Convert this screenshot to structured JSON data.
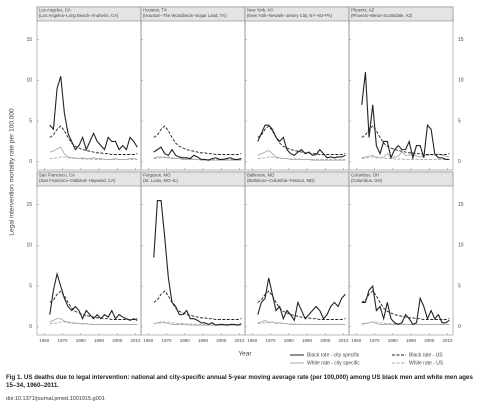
{
  "chart_data": {
    "type": "line",
    "ylabel": "Legal intervention mortality rate per 100,000",
    "xlabel": "Year",
    "x": [
      1963,
      1965,
      1967,
      1969,
      1971,
      1973,
      1975,
      1977,
      1979,
      1981,
      1983,
      1985,
      1987,
      1989,
      1991,
      1993,
      1995,
      1997,
      1999,
      2001,
      2003,
      2005,
      2007,
      2009,
      2011
    ],
    "xlim": [
      1956,
      2013
    ],
    "xticks": [
      1960,
      1970,
      1980,
      1990,
      2000,
      2010
    ],
    "ylim": [
      -1,
      16.3
    ],
    "yticks": [
      0,
      5,
      10,
      15
    ],
    "series": [
      {
        "name": "Black rate - city specific",
        "color": "#222222",
        "dash": false
      },
      {
        "name": "Black rate - US",
        "color": "#222222",
        "dash": true
      },
      {
        "name": "White rate - city specific",
        "color": "#aaaaaa",
        "dash": false
      },
      {
        "name": "White rate - US",
        "color": "#aaaaaa",
        "dash": true
      }
    ],
    "panels": [
      {
        "title": "Los Angeles, CA",
        "subtitle": "(Los Angeles–Long Beach–Anaheim, CA)",
        "values": [
          [
            4.5,
            4.0,
            9.0,
            10.5,
            6.0,
            3.5,
            2.5,
            1.5,
            2.0,
            3.0,
            1.5,
            2.5,
            3.5,
            2.5,
            2.0,
            1.5,
            3.0,
            2.5,
            2.5,
            1.5,
            2.0,
            1.5,
            3.0,
            2.5,
            1.8
          ],
          [
            3.0,
            3.3,
            4.0,
            4.4,
            3.8,
            3.0,
            2.3,
            1.9,
            1.7,
            1.5,
            1.4,
            1.3,
            1.2,
            1.1,
            1.1,
            1.0,
            1.0,
            0.9,
            0.9,
            0.9,
            0.9,
            0.9,
            0.9,
            0.9,
            1.0
          ],
          [
            1.2,
            1.3,
            1.6,
            1.8,
            1.0,
            0.6,
            0.5,
            0.5,
            0.4,
            0.5,
            0.4,
            0.4,
            0.5,
            0.4,
            0.4,
            0.3,
            0.3,
            0.3,
            0.4,
            0.3,
            0.3,
            0.3,
            0.4,
            0.4,
            0.3
          ],
          [
            0.4,
            0.45,
            0.5,
            0.6,
            0.6,
            0.5,
            0.45,
            0.4,
            0.4,
            0.35,
            0.35,
            0.35,
            0.3,
            0.3,
            0.3,
            0.3,
            0.3,
            0.3,
            0.3,
            0.3,
            0.3,
            0.3,
            0.3,
            0.3,
            0.3
          ]
        ]
      },
      {
        "title": "Houston, TX",
        "subtitle": "(Houston–The Woodlands–Sugar Land, TX)",
        "values": [
          [
            1.2,
            1.5,
            1.8,
            1.0,
            0.8,
            1.5,
            0.8,
            0.6,
            0.5,
            0.5,
            0.4,
            0.8,
            0.6,
            0.3,
            0.3,
            0.2,
            0.4,
            0.5,
            0.3,
            0.3,
            0.4,
            0.5,
            0.3,
            0.3,
            0.4
          ],
          [
            3.0,
            3.3,
            4.0,
            4.4,
            3.8,
            3.0,
            2.3,
            1.9,
            1.7,
            1.5,
            1.4,
            1.3,
            1.2,
            1.1,
            1.1,
            1.0,
            1.0,
            0.9,
            0.9,
            0.9,
            0.9,
            0.9,
            0.9,
            0.9,
            1.0
          ],
          [
            0.5,
            0.6,
            0.6,
            0.5,
            0.5,
            0.4,
            0.4,
            0.4,
            0.3,
            0.3,
            0.3,
            0.3,
            0.3,
            0.2,
            0.2,
            0.2,
            0.2,
            0.2,
            0.2,
            0.2,
            0.2,
            0.2,
            0.2,
            0.2,
            0.2
          ],
          [
            0.4,
            0.45,
            0.5,
            0.6,
            0.6,
            0.5,
            0.45,
            0.4,
            0.4,
            0.35,
            0.35,
            0.35,
            0.3,
            0.3,
            0.3,
            0.3,
            0.3,
            0.3,
            0.3,
            0.3,
            0.3,
            0.3,
            0.3,
            0.3,
            0.3
          ]
        ]
      },
      {
        "title": "New York, NY",
        "subtitle": "(New York–Newark–Jersey City, NY–NJ–PA)",
        "values": [
          [
            2.5,
            3.5,
            4.5,
            4.5,
            4.0,
            3.0,
            2.5,
            3.0,
            1.5,
            1.0,
            0.8,
            1.2,
            1.5,
            1.0,
            1.2,
            0.8,
            0.9,
            1.5,
            1.0,
            0.5,
            0.6,
            0.5,
            0.6,
            0.6,
            0.8
          ],
          [
            3.0,
            3.3,
            4.0,
            4.4,
            3.8,
            3.0,
            2.3,
            1.9,
            1.7,
            1.5,
            1.4,
            1.3,
            1.2,
            1.1,
            1.1,
            1.0,
            1.0,
            0.9,
            0.9,
            0.9,
            0.9,
            0.9,
            0.9,
            0.9,
            1.0
          ],
          [
            0.8,
            1.0,
            1.2,
            1.4,
            1.0,
            0.6,
            0.5,
            0.4,
            0.4,
            0.3,
            0.3,
            0.3,
            0.3,
            0.3,
            0.3,
            0.2,
            0.2,
            0.2,
            0.2,
            0.2,
            0.2,
            0.2,
            0.2,
            0.2,
            0.2
          ],
          [
            0.4,
            0.45,
            0.5,
            0.6,
            0.6,
            0.5,
            0.45,
            0.4,
            0.4,
            0.35,
            0.35,
            0.35,
            0.3,
            0.3,
            0.3,
            0.3,
            0.3,
            0.3,
            0.3,
            0.3,
            0.3,
            0.3,
            0.3,
            0.3,
            0.3
          ]
        ]
      },
      {
        "title": "Phoenix, AZ",
        "subtitle": "(Phoenix–Mesa–Scottsdale, AZ)",
        "values": [
          [
            7.0,
            11.0,
            3.0,
            7.0,
            2.0,
            1.0,
            2.5,
            2.5,
            0.5,
            1.5,
            2.0,
            1.5,
            1.5,
            2.5,
            0.5,
            2.0,
            2.0,
            0.5,
            4.5,
            4.0,
            1.0,
            0.5,
            0.5,
            0.3,
            0.3
          ],
          [
            3.0,
            3.3,
            4.0,
            4.4,
            3.8,
            3.0,
            2.3,
            1.9,
            1.7,
            1.5,
            1.4,
            1.3,
            1.2,
            1.1,
            1.1,
            1.0,
            1.0,
            0.9,
            0.9,
            0.9,
            0.9,
            0.9,
            0.9,
            0.9,
            1.0
          ],
          [
            0.5,
            0.6,
            0.7,
            0.8,
            0.5,
            0.5,
            0.6,
            1.0,
            0.5,
            0.6,
            0.7,
            1.2,
            0.8,
            0.8,
            1.0,
            0.7,
            0.6,
            0.7,
            0.8,
            0.9,
            0.8,
            1.0,
            0.8,
            0.7,
            0.6
          ],
          [
            0.4,
            0.45,
            0.5,
            0.6,
            0.6,
            0.5,
            0.45,
            0.4,
            0.4,
            0.35,
            0.35,
            0.35,
            0.3,
            0.3,
            0.3,
            0.3,
            0.3,
            0.3,
            0.3,
            0.3,
            0.3,
            0.3,
            0.3,
            0.3,
            0.3
          ]
        ]
      },
      {
        "title": "San Francisco, CA",
        "subtitle": "(San Francisco–Oakland–Hayward, CA)",
        "values": [
          [
            1.5,
            4.5,
            6.5,
            5.0,
            3.5,
            2.5,
            2.0,
            2.5,
            2.0,
            1.0,
            2.0,
            1.5,
            1.0,
            1.5,
            1.0,
            1.5,
            1.2,
            2.0,
            1.0,
            1.5,
            1.2,
            1.0,
            0.8,
            1.0,
            0.8
          ],
          [
            3.0,
            3.3,
            4.0,
            4.4,
            3.8,
            3.0,
            2.3,
            1.9,
            1.7,
            1.5,
            1.4,
            1.3,
            1.2,
            1.1,
            1.1,
            1.0,
            1.0,
            0.9,
            0.9,
            0.9,
            0.9,
            0.9,
            0.9,
            0.9,
            1.0
          ],
          [
            0.6,
            0.8,
            1.0,
            1.0,
            0.7,
            0.6,
            0.5,
            0.5,
            0.4,
            0.4,
            0.4,
            0.3,
            0.3,
            0.3,
            0.3,
            0.3,
            0.3,
            0.3,
            0.3,
            0.3,
            0.3,
            0.3,
            0.3,
            0.3,
            0.3
          ],
          [
            0.4,
            0.45,
            0.5,
            0.6,
            0.6,
            0.5,
            0.45,
            0.4,
            0.4,
            0.35,
            0.35,
            0.35,
            0.3,
            0.3,
            0.3,
            0.3,
            0.3,
            0.3,
            0.3,
            0.3,
            0.3,
            0.3,
            0.3,
            0.3,
            0.3
          ]
        ]
      },
      {
        "title": "Ferguson, MO",
        "subtitle": "(St. Louis, MO–IL)",
        "values": [
          [
            8.5,
            15.5,
            15.5,
            11.0,
            6.0,
            3.0,
            2.5,
            1.5,
            1.5,
            2.0,
            1.0,
            1.0,
            0.8,
            0.5,
            0.5,
            0.3,
            0.5,
            0.2,
            0.3,
            0.3,
            0.2,
            0.3,
            0.3,
            0.2,
            0.4
          ],
          [
            3.0,
            3.3,
            4.0,
            4.4,
            3.8,
            3.0,
            2.3,
            1.9,
            1.7,
            1.5,
            1.4,
            1.3,
            1.2,
            1.1,
            1.1,
            1.0,
            1.0,
            0.9,
            0.9,
            0.9,
            0.9,
            0.9,
            0.9,
            0.9,
            1.0
          ],
          [
            0.4,
            0.5,
            0.6,
            0.5,
            0.4,
            0.3,
            0.3,
            0.3,
            0.3,
            0.3,
            0.2,
            0.2,
            0.2,
            0.2,
            0.2,
            0.2,
            0.2,
            0.2,
            0.2,
            0.2,
            0.2,
            0.2,
            0.2,
            0.2,
            0.2
          ],
          [
            0.4,
            0.45,
            0.5,
            0.6,
            0.6,
            0.5,
            0.45,
            0.4,
            0.4,
            0.35,
            0.35,
            0.35,
            0.3,
            0.3,
            0.3,
            0.3,
            0.3,
            0.3,
            0.3,
            0.3,
            0.3,
            0.3,
            0.3,
            0.3,
            0.3
          ]
        ]
      },
      {
        "title": "Baltimore, MD",
        "subtitle": "(Baltimore–Columbia–Towson, MD)",
        "values": [
          [
            1.5,
            3.0,
            3.5,
            6.0,
            4.0,
            2.0,
            2.5,
            1.0,
            2.0,
            1.5,
            0.8,
            3.0,
            2.0,
            1.0,
            1.5,
            2.0,
            2.5,
            2.0,
            1.0,
            1.5,
            2.5,
            3.0,
            2.5,
            3.5,
            4.0
          ],
          [
            3.0,
            3.3,
            4.0,
            4.4,
            3.8,
            3.0,
            2.3,
            1.9,
            1.7,
            1.5,
            1.4,
            1.3,
            1.2,
            1.1,
            1.1,
            1.0,
            1.0,
            0.9,
            0.9,
            0.9,
            0.9,
            0.9,
            0.9,
            0.9,
            1.0
          ],
          [
            0.5,
            0.6,
            0.8,
            0.5,
            0.6,
            0.4,
            0.5,
            0.4,
            0.4,
            0.3,
            0.3,
            0.3,
            0.3,
            0.3,
            0.3,
            0.3,
            0.3,
            0.3,
            0.3,
            0.3,
            0.3,
            0.3,
            0.3,
            0.3,
            0.3
          ],
          [
            0.4,
            0.45,
            0.5,
            0.6,
            0.6,
            0.5,
            0.45,
            0.4,
            0.4,
            0.35,
            0.35,
            0.35,
            0.3,
            0.3,
            0.3,
            0.3,
            0.3,
            0.3,
            0.3,
            0.3,
            0.3,
            0.3,
            0.3,
            0.3,
            0.3
          ]
        ]
      },
      {
        "title": "Columbus, OH",
        "subtitle": "(Columbus, OH)",
        "values": [
          [
            3.0,
            3.0,
            4.5,
            5.0,
            2.0,
            2.5,
            1.0,
            3.0,
            1.0,
            0.5,
            0.3,
            0.5,
            1.5,
            1.0,
            0.3,
            0.5,
            3.5,
            2.5,
            1.0,
            2.0,
            1.0,
            1.5,
            0.5,
            0.5,
            0.8
          ],
          [
            3.0,
            3.3,
            4.0,
            4.4,
            3.8,
            3.0,
            2.3,
            1.9,
            1.7,
            1.5,
            1.4,
            1.3,
            1.2,
            1.1,
            1.1,
            1.0,
            1.0,
            0.9,
            0.9,
            0.9,
            0.9,
            0.9,
            0.9,
            0.9,
            1.0
          ],
          [
            0.3,
            0.4,
            0.5,
            0.6,
            0.4,
            0.3,
            0.3,
            0.3,
            0.3,
            0.3,
            0.3,
            0.3,
            0.3,
            0.3,
            0.3,
            0.3,
            0.3,
            0.3,
            0.3,
            0.3,
            0.3,
            0.3,
            0.3,
            0.3,
            0.3
          ],
          [
            0.4,
            0.45,
            0.5,
            0.6,
            0.6,
            0.5,
            0.45,
            0.4,
            0.4,
            0.35,
            0.35,
            0.35,
            0.3,
            0.3,
            0.3,
            0.3,
            0.3,
            0.3,
            0.3,
            0.3,
            0.3,
            0.3,
            0.3,
            0.3,
            0.3
          ]
        ]
      }
    ]
  },
  "caption": "Fig 1. US deaths due to legal intervention: national and city-specific annual 5-year moving average rate (per 100,000) among US black men and white men ages 15–34, 1960–2011.",
  "doi": "doi:10.1371/journal.pmed.1001915.g001"
}
